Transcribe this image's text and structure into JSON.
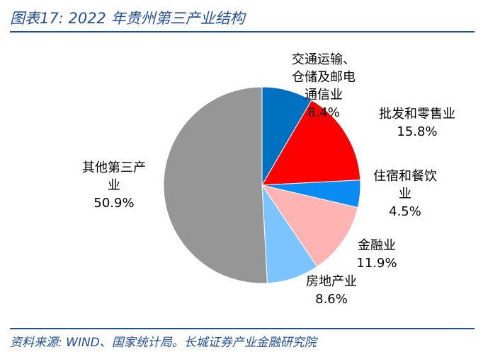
{
  "title": "图表17:  2022 年贵州第三产业结构",
  "source": "资料来源:  WIND、国家统计局。长城证券产业金融研究院",
  "chart_data": {
    "type": "pie",
    "title": "2022 年贵州第三产业结构",
    "unit": "%",
    "start_angle_deg": 0,
    "direction": "clockwise",
    "slices": [
      {
        "name_lines": [
          "交通运输、",
          "仓储及邮电",
          "通信业"
        ],
        "value": 8.4,
        "value_label": "8.4%",
        "color": "#0070c0"
      },
      {
        "name_lines": [
          "批发和零售业"
        ],
        "value": 15.8,
        "value_label": "15.8%",
        "color": "#ff0000"
      },
      {
        "name_lines": [
          "住宿和餐饮",
          "业"
        ],
        "value": 4.5,
        "value_label": "4.5%",
        "color": "#0b8cf5"
      },
      {
        "name_lines": [
          "金融业"
        ],
        "value": 11.9,
        "value_label": "11.9%",
        "color": "#ffb3b3"
      },
      {
        "name_lines": [
          "房地产业"
        ],
        "value": 8.6,
        "value_label": "8.6%",
        "color": "#7cc4ff"
      },
      {
        "name_lines": [
          "其他第三产",
          "业"
        ],
        "value": 50.9,
        "value_label": "50.9%",
        "color": "#969696"
      }
    ]
  }
}
